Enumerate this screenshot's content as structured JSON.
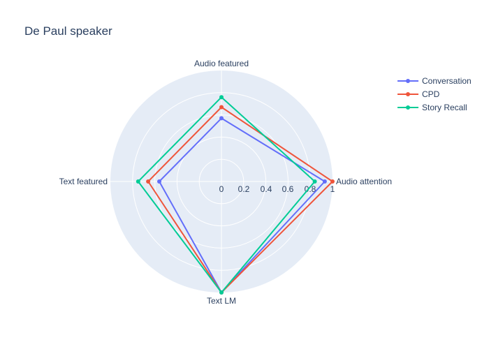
{
  "chart_data": {
    "type": "radar",
    "title": "De Paul speaker",
    "categories": [
      "Audio attention",
      "Audio featured",
      "Text featured",
      "Text LM"
    ],
    "radial_range": [
      0,
      1
    ],
    "radial_ticks": [
      "0",
      "0.2",
      "0.4",
      "0.6",
      "0.8",
      "1"
    ],
    "grid": true,
    "legend_position": "top-right",
    "background_color": "#e5ecf6",
    "series": [
      {
        "name": "Conversation",
        "color": "#636efa",
        "values": [
          0.93,
          0.57,
          0.56,
          1.0
        ]
      },
      {
        "name": "CPD",
        "color": "#ef553b",
        "values": [
          1.0,
          0.67,
          0.66,
          1.0
        ]
      },
      {
        "name": "Story Recall",
        "color": "#00cc96",
        "values": [
          0.84,
          0.76,
          0.75,
          1.0
        ]
      }
    ]
  }
}
